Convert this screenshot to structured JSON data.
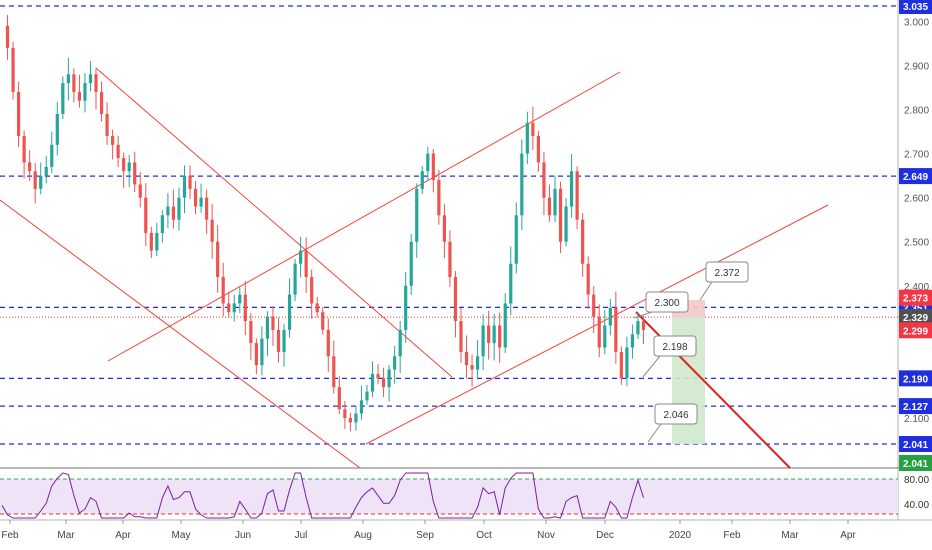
{
  "chart_data": {
    "type": "candlestick",
    "x_axis": {
      "tick_labels": [
        "Feb",
        "Mar",
        "Apr",
        "May",
        "Jun",
        "Jul",
        "Aug",
        "Sep",
        "Oct",
        "Nov",
        "Dec",
        "2020",
        "Feb",
        "Mar",
        "Apr"
      ]
    },
    "y_axis": {
      "range": [
        2.02,
        3.05
      ],
      "tick_labels": [
        "3.000",
        "2.900",
        "2.800",
        "2.700",
        "2.600",
        "2.500",
        "2.400",
        "2.300",
        "2.200",
        "2.100"
      ],
      "tick_values": [
        3.0,
        2.9,
        2.8,
        2.7,
        2.6,
        2.5,
        2.4,
        2.3,
        2.2,
        2.1
      ]
    },
    "horizontal_levels": [
      {
        "label": "3.035",
        "value": 3.035,
        "color": "#1f2fe0"
      },
      {
        "label": "2.649",
        "value": 2.649,
        "color": "#1f2fe0"
      },
      {
        "label": "2.351",
        "value": 2.351,
        "color": "#1f2fe0"
      },
      {
        "label": "2.190",
        "value": 2.19,
        "color": "#1f2fe0"
      },
      {
        "label": "2.127",
        "value": 2.127,
        "color": "#1f2fe0"
      },
      {
        "label": "2.041",
        "value": 2.041,
        "color": "#1f2fe0"
      }
    ],
    "price_tags": [
      {
        "label": "2.373",
        "value": 2.373,
        "color": "#f23645"
      },
      {
        "label": "2.329",
        "value": 2.329,
        "color": "#505050"
      },
      {
        "label": "2.299",
        "value": 2.299,
        "color": "#f23645"
      },
      {
        "label": "2.041",
        "value": 2.041,
        "color": "#26a041"
      }
    ],
    "callouts": [
      {
        "label": "2.372",
        "value": 2.372
      },
      {
        "label": "2.300",
        "value": 2.3
      },
      {
        "label": "2.198",
        "value": 2.198
      },
      {
        "label": "2.046",
        "value": 2.046
      }
    ],
    "ohlc_close_path": [
      [
        0,
        2.99
      ],
      [
        1,
        2.94
      ],
      [
        2,
        2.84
      ],
      [
        3,
        2.74
      ],
      [
        4,
        2.68
      ],
      [
        5,
        2.66
      ],
      [
        6,
        2.62
      ],
      [
        7,
        2.65
      ],
      [
        8,
        2.67
      ],
      [
        9,
        2.72
      ],
      [
        10,
        2.79
      ],
      [
        11,
        2.86
      ],
      [
        12,
        2.88
      ],
      [
        13,
        2.84
      ],
      [
        14,
        2.82
      ],
      [
        15,
        2.86
      ],
      [
        16,
        2.88
      ],
      [
        17,
        2.84
      ],
      [
        18,
        2.79
      ],
      [
        19,
        2.74
      ],
      [
        20,
        2.72
      ],
      [
        21,
        2.69
      ],
      [
        22,
        2.66
      ],
      [
        23,
        2.68
      ],
      [
        24,
        2.63
      ],
      [
        25,
        2.6
      ],
      [
        26,
        2.52
      ],
      [
        27,
        2.48
      ],
      [
        28,
        2.52
      ],
      [
        29,
        2.56
      ],
      [
        30,
        2.58
      ],
      [
        31,
        2.55
      ],
      [
        32,
        2.6
      ],
      [
        33,
        2.65
      ],
      [
        34,
        2.62
      ],
      [
        35,
        2.58
      ],
      [
        36,
        2.6
      ],
      [
        37,
        2.55
      ],
      [
        38,
        2.5
      ],
      [
        39,
        2.42
      ],
      [
        40,
        2.36
      ],
      [
        41,
        2.34
      ],
      [
        42,
        2.36
      ],
      [
        43,
        2.38
      ],
      [
        44,
        2.32
      ],
      [
        45,
        2.27
      ],
      [
        46,
        2.22
      ],
      [
        47,
        2.28
      ],
      [
        48,
        2.33
      ],
      [
        49,
        2.3
      ],
      [
        50,
        2.25
      ],
      [
        51,
        2.3
      ],
      [
        52,
        2.38
      ],
      [
        53,
        2.45
      ],
      [
        54,
        2.48
      ],
      [
        55,
        2.42
      ],
      [
        56,
        2.36
      ],
      [
        57,
        2.34
      ],
      [
        58,
        2.3
      ],
      [
        59,
        2.24
      ],
      [
        60,
        2.17
      ],
      [
        61,
        2.12
      ],
      [
        62,
        2.1
      ],
      [
        63,
        2.09
      ],
      [
        64,
        2.11
      ],
      [
        65,
        2.14
      ],
      [
        66,
        2.16
      ],
      [
        67,
        2.2
      ],
      [
        68,
        2.19
      ],
      [
        69,
        2.17
      ],
      [
        70,
        2.21
      ],
      [
        71,
        2.24
      ],
      [
        72,
        2.3
      ],
      [
        73,
        2.4
      ],
      [
        74,
        2.5
      ],
      [
        75,
        2.62
      ],
      [
        76,
        2.66
      ],
      [
        77,
        2.7
      ],
      [
        78,
        2.64
      ],
      [
        79,
        2.56
      ],
      [
        80,
        2.5
      ],
      [
        81,
        2.42
      ],
      [
        82,
        2.32
      ],
      [
        83,
        2.25
      ],
      [
        84,
        2.22
      ],
      [
        85,
        2.21
      ],
      [
        86,
        2.24
      ],
      [
        87,
        2.31
      ],
      [
        88,
        2.27
      ],
      [
        89,
        2.31
      ],
      [
        90,
        2.26
      ],
      [
        91,
        2.36
      ],
      [
        92,
        2.45
      ],
      [
        93,
        2.56
      ],
      [
        94,
        2.7
      ],
      [
        95,
        2.77
      ],
      [
        96,
        2.74
      ],
      [
        97,
        2.68
      ],
      [
        98,
        2.6
      ],
      [
        99,
        2.56
      ],
      [
        100,
        2.62
      ],
      [
        101,
        2.5
      ],
      [
        102,
        2.58
      ],
      [
        103,
        2.66
      ],
      [
        104,
        2.55
      ],
      [
        105,
        2.45
      ],
      [
        106,
        2.38
      ],
      [
        107,
        2.33
      ],
      [
        108,
        2.26
      ],
      [
        109,
        2.31
      ],
      [
        110,
        2.35
      ],
      [
        111,
        2.25
      ],
      [
        112,
        2.19
      ],
      [
        113,
        2.26
      ],
      [
        114,
        2.29
      ],
      [
        115,
        2.32
      ],
      [
        116,
        2.3
      ]
    ],
    "rsi": {
      "levels": [
        {
          "label": "80.00",
          "value": 80
        },
        {
          "label": "40.00",
          "value": 40
        }
      ]
    }
  }
}
